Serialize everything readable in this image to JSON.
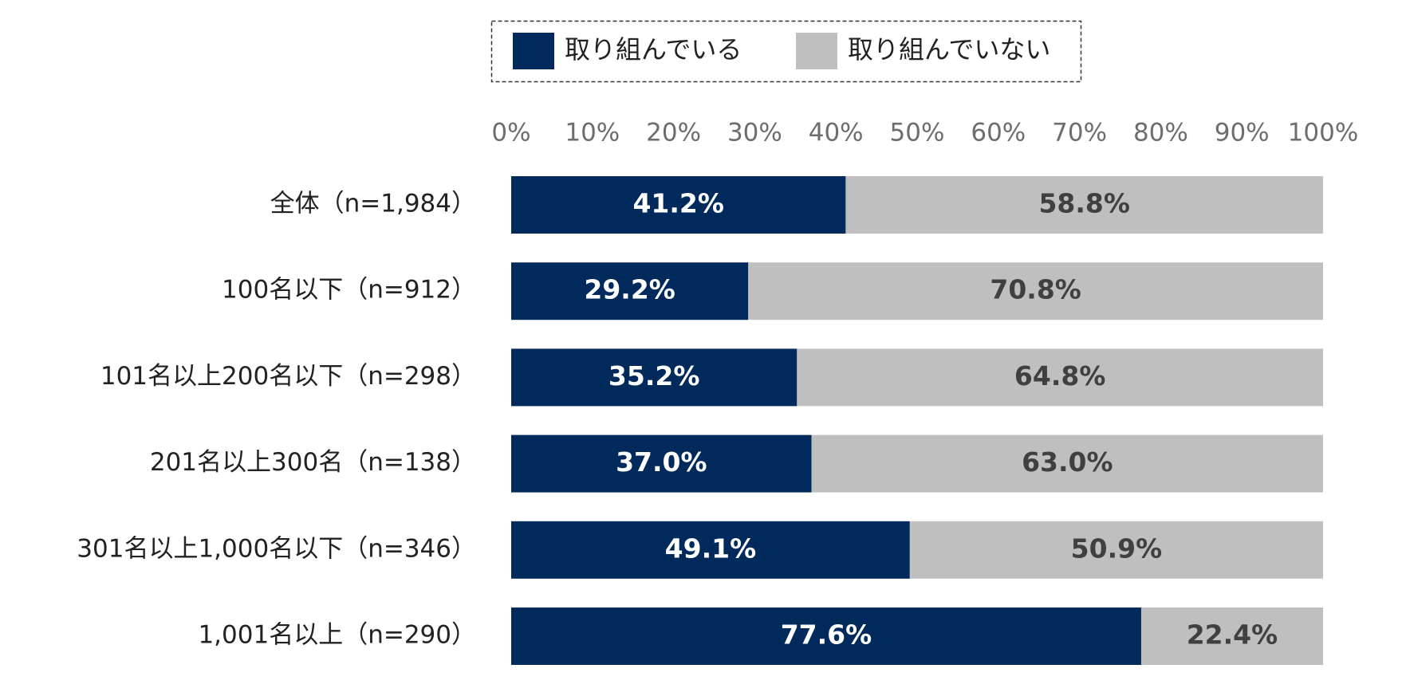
{
  "chart_data": {
    "type": "bar",
    "orientation": "horizontal",
    "stacked": "percent",
    "title": "",
    "xlabel": "",
    "ylabel": "",
    "xlim": [
      0,
      100
    ],
    "x_ticks": [
      "0%",
      "10%",
      "20%",
      "30%",
      "40%",
      "50%",
      "60%",
      "70%",
      "80%",
      "90%",
      "100%"
    ],
    "grid": false,
    "legend_position": "top",
    "categories": [
      "全体（n=1,984）",
      "100名以下（n=912）",
      "101名以上200名以下（n=298）",
      "201名以上300名（n=138）",
      "301名以上1,000名以下（n=346）",
      "1,001名以上（n=290）"
    ],
    "series": [
      {
        "name": "取り組んでいる",
        "color": "#002a5c",
        "label_color": "#ffffff",
        "values": [
          41.2,
          29.2,
          35.2,
          37.0,
          49.1,
          77.6
        ],
        "labels": [
          "41.2%",
          "29.2%",
          "35.2%",
          "37.0%",
          "49.1%",
          "77.6%"
        ]
      },
      {
        "name": "取り組んでいない",
        "color": "#bfbfbf",
        "label_color": "#404040",
        "values": [
          58.8,
          70.8,
          64.8,
          63.0,
          50.9,
          22.4
        ],
        "labels": [
          "58.8%",
          "70.8%",
          "64.8%",
          "63.0%",
          "50.9%",
          "22.4%"
        ]
      }
    ]
  }
}
